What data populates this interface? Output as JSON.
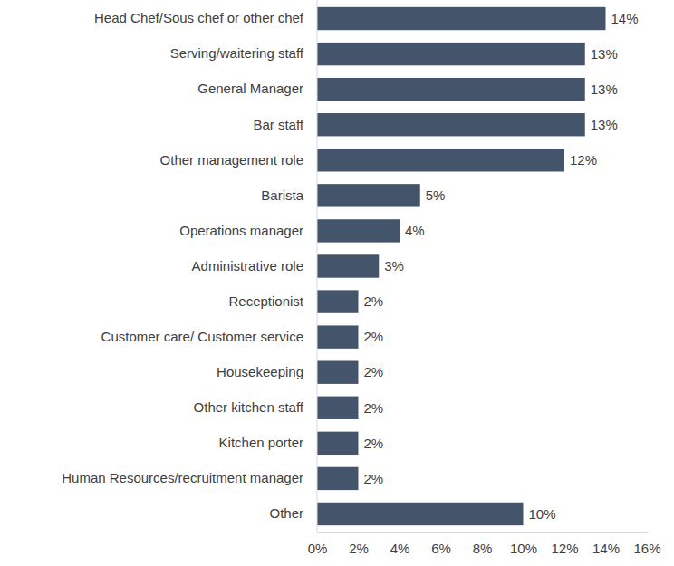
{
  "chart_data": {
    "type": "bar",
    "orientation": "horizontal",
    "categories": [
      "Head Chef/Sous chef or other chef",
      "Serving/waitering staff",
      "General Manager",
      "Bar staff",
      "Other management role",
      "Barista",
      "Operations manager",
      "Administrative role",
      "Receptionist",
      "Customer care/ Customer service",
      "Housekeeping",
      "Other kitchen staff",
      "Kitchen porter",
      "Human Resources/recruitment manager",
      "Other"
    ],
    "values": [
      14,
      13,
      13,
      13,
      12,
      5,
      4,
      3,
      2,
      2,
      2,
      2,
      2,
      2,
      10
    ],
    "value_labels": [
      "14%",
      "13%",
      "13%",
      "13%",
      "12%",
      "5%",
      "4%",
      "3%",
      "2%",
      "2%",
      "2%",
      "2%",
      "2%",
      "2%",
      "10%"
    ],
    "color": "#44546a",
    "xlim": [
      0,
      16
    ],
    "xticks": [
      {
        "value": 0,
        "label": "0%"
      },
      {
        "value": 2,
        "label": "2%"
      },
      {
        "value": 4,
        "label": "4%"
      },
      {
        "value": 6,
        "label": "6%"
      },
      {
        "value": 8,
        "label": "8%"
      },
      {
        "value": 10,
        "label": "10%"
      },
      {
        "value": 12,
        "label": "12%"
      },
      {
        "value": 14,
        "label": "14%"
      },
      {
        "value": 16,
        "label": "16%"
      }
    ],
    "data_labels": true,
    "grid": false
  }
}
